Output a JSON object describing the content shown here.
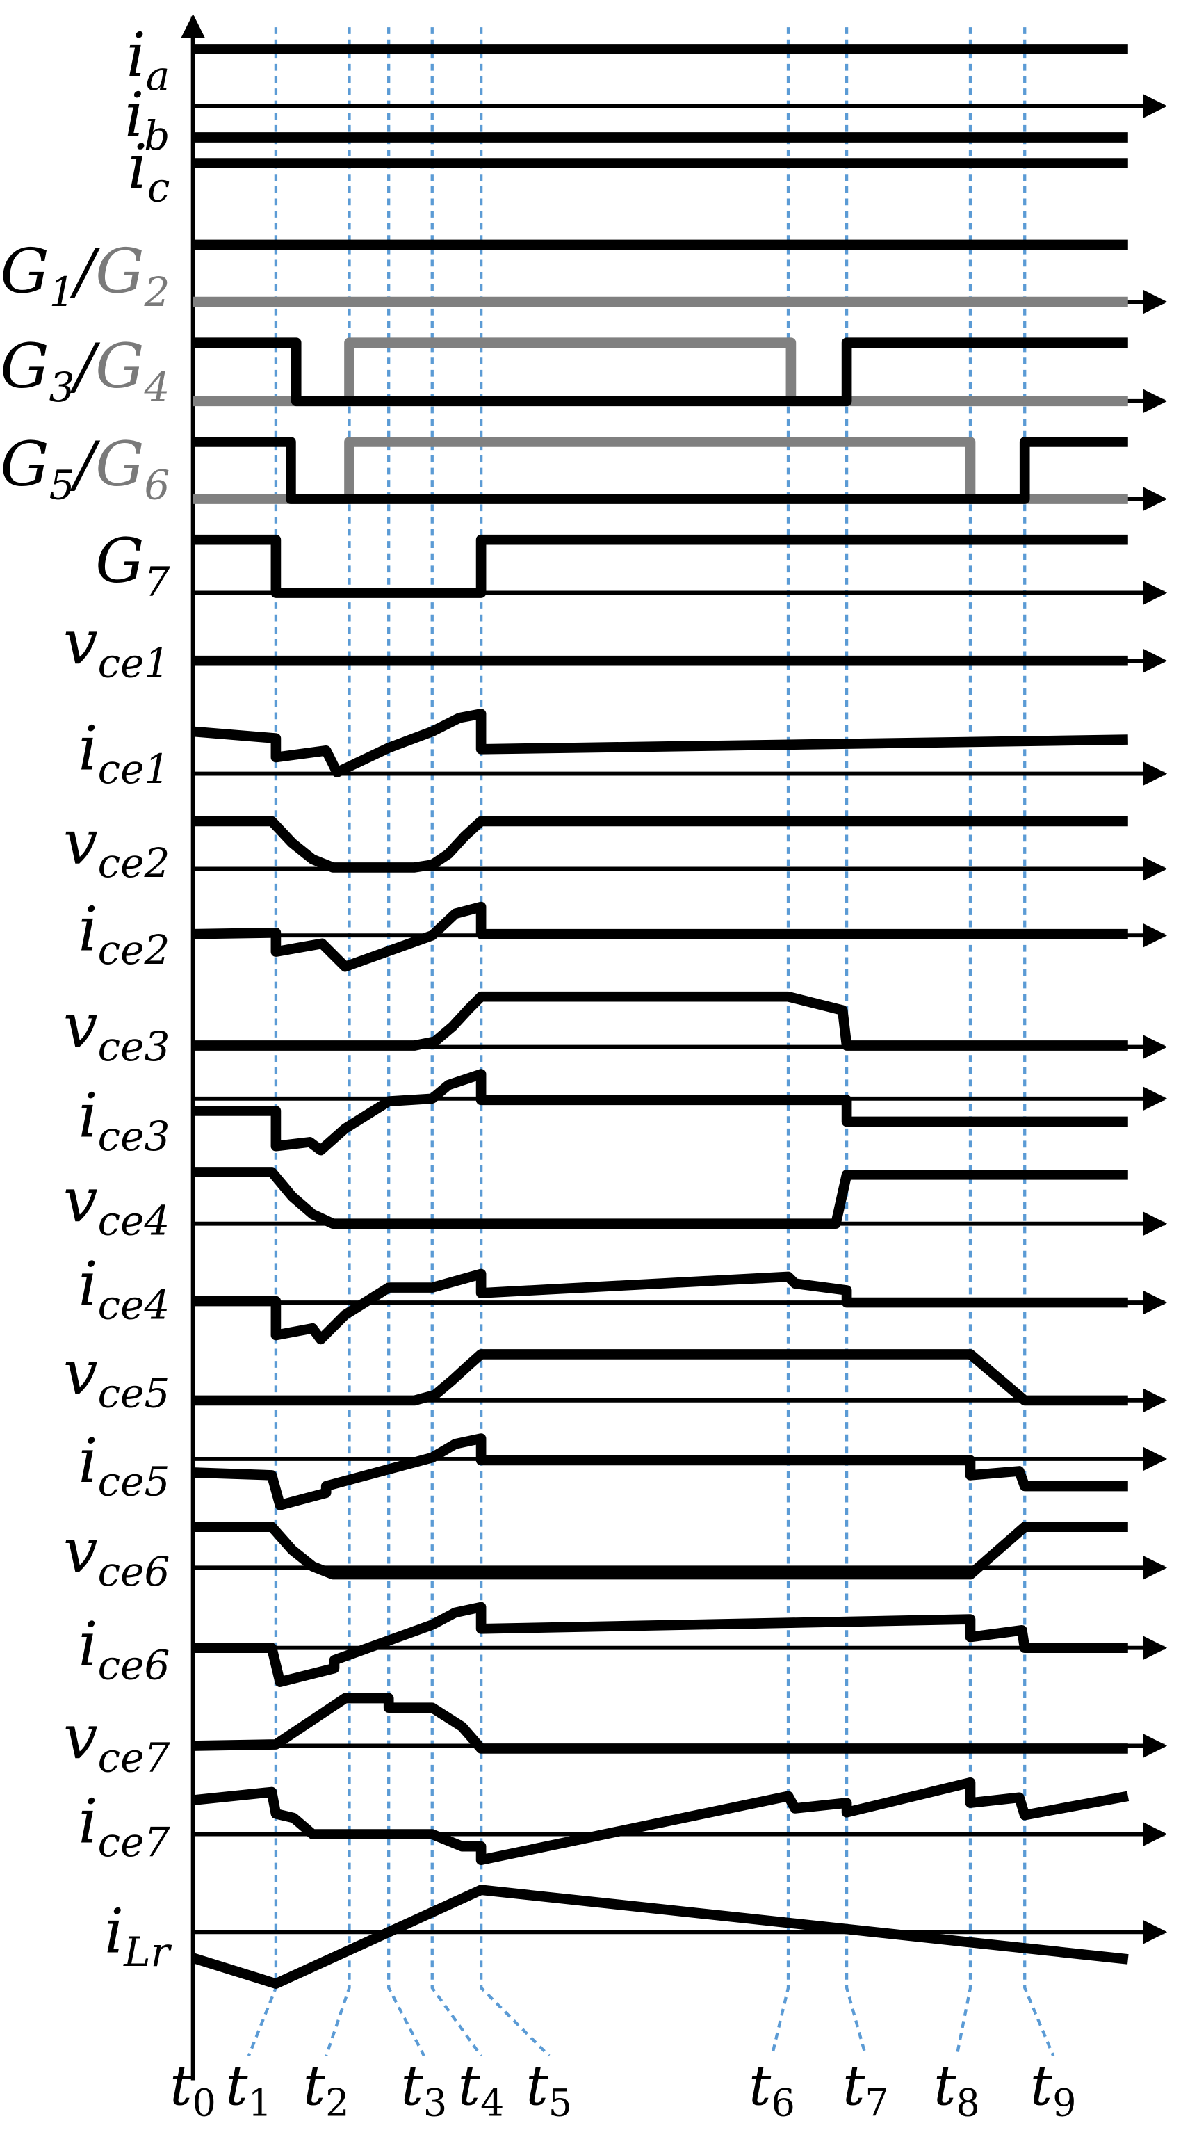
{
  "diagram": {
    "signals": [
      {
        "base": "i",
        "sub": "a"
      },
      {
        "base": "i",
        "sub": "b"
      },
      {
        "base": "i",
        "sub": "c"
      },
      {
        "base": "G",
        "sub": "1",
        "sep": "/",
        "base2": "G",
        "sub2": "2"
      },
      {
        "base": "G",
        "sub": "3",
        "sep": "/",
        "base2": "G",
        "sub2": "4"
      },
      {
        "base": "G",
        "sub": "5",
        "sep": "/",
        "base2": "G",
        "sub2": "6"
      },
      {
        "base": "G",
        "sub": "7"
      },
      {
        "base": "v",
        "sub": "ce1"
      },
      {
        "base": "i",
        "sub": "ce1"
      },
      {
        "base": "v",
        "sub": "ce2"
      },
      {
        "base": "i",
        "sub": "ce2"
      },
      {
        "base": "v",
        "sub": "ce3"
      },
      {
        "base": "i",
        "sub": "ce3"
      },
      {
        "base": "v",
        "sub": "ce4"
      },
      {
        "base": "i",
        "sub": "ce4"
      },
      {
        "base": "v",
        "sub": "ce5"
      },
      {
        "base": "i",
        "sub": "ce5"
      },
      {
        "base": "v",
        "sub": "ce6"
      },
      {
        "base": "i",
        "sub": "ce6"
      },
      {
        "base": "v",
        "sub": "ce7"
      },
      {
        "base": "i",
        "sub": "ce7"
      },
      {
        "base": "i",
        "sub": "Lr"
      }
    ],
    "time_markers": [
      {
        "base": "t",
        "sub": "0"
      },
      {
        "base": "t",
        "sub": "1"
      },
      {
        "base": "t",
        "sub": "2"
      },
      {
        "base": "t",
        "sub": "3"
      },
      {
        "base": "t",
        "sub": "4"
      },
      {
        "base": "t",
        "sub": "5"
      },
      {
        "base": "t",
        "sub": "6"
      },
      {
        "base": "t",
        "sub": "7"
      },
      {
        "base": "t",
        "sub": "8"
      },
      {
        "base": "t",
        "sub": "9"
      }
    ],
    "colors": {
      "trace": "#000000",
      "complementary_gate": "#808080",
      "marker": "#5b9bd5"
    }
  }
}
